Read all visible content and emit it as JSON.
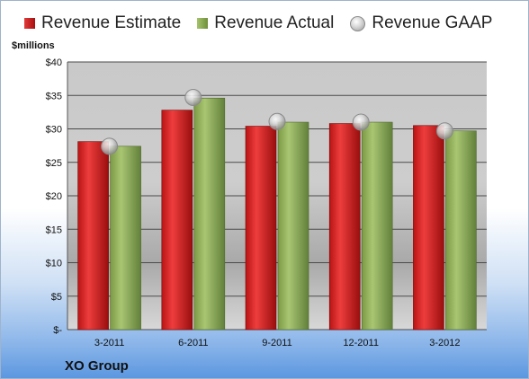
{
  "chart_data": {
    "type": "bar",
    "title": "",
    "xlabel": "",
    "ylabel": "$millions",
    "ylim": [
      0,
      40
    ],
    "yticks": [
      "$-",
      "$5",
      "$10",
      "$15",
      "$20",
      "$25",
      "$30",
      "$35",
      "$40"
    ],
    "categories": [
      "3-2011",
      "6-2011",
      "9-2011",
      "12-2011",
      "3-2012"
    ],
    "series": [
      {
        "name": "Revenue Estimate",
        "type": "bar",
        "color": "#c41e1e",
        "values": [
          28.1,
          32.8,
          30.4,
          30.8,
          30.5
        ]
      },
      {
        "name": "Revenue Actual",
        "type": "bar",
        "color": "#8aab4f",
        "values": [
          27.4,
          34.6,
          31.0,
          31.0,
          29.7
        ]
      },
      {
        "name": "Revenue GAAP",
        "type": "scatter",
        "color": "#c8c8c8",
        "values": [
          27.4,
          34.7,
          31.1,
          31.0,
          29.7
        ]
      }
    ],
    "legend_position": "top",
    "grid": true
  },
  "footer": {
    "company": "XO Group"
  }
}
